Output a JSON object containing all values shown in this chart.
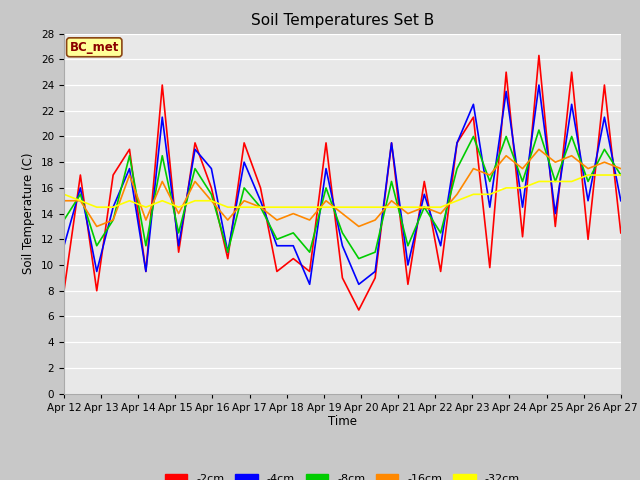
{
  "title": "Soil Temperatures Set B",
  "xlabel": "Time",
  "ylabel": "Soil Temperature (C)",
  "ylim": [
    0,
    28
  ],
  "yticks": [
    0,
    2,
    4,
    6,
    8,
    10,
    12,
    14,
    16,
    18,
    20,
    22,
    24,
    26,
    28
  ],
  "annotation": "BC_met",
  "legend_labels": [
    "-2cm",
    "-4cm",
    "-8cm",
    "-16cm",
    "-32cm"
  ],
  "legend_colors": [
    "#ff0000",
    "#0000ff",
    "#00cc00",
    "#ff8800",
    "#ffff00"
  ],
  "bg_color": "#e0e0e0",
  "plot_bg_color": "#e8e8e8",
  "xtick_labels": [
    "Apr 12",
    "Apr 13",
    "Apr 14",
    "Apr 15",
    "Apr 16",
    "Apr 17",
    "Apr 18",
    "Apr 19",
    "Apr 20",
    "Apr 21",
    "Apr 22",
    "Apr 23",
    "Apr 24",
    "Apr 25",
    "Apr 26",
    "Apr 27"
  ],
  "t_2cm": [
    8.0,
    17.0,
    8.0,
    17.0,
    19.0,
    9.5,
    24.0,
    11.0,
    19.5,
    16.0,
    10.5,
    19.5,
    16.0,
    9.5,
    10.5,
    9.5,
    19.5,
    9.0,
    6.5,
    9.0,
    19.5,
    8.5,
    16.5,
    9.5,
    19.5,
    21.5,
    9.8,
    25.0,
    12.2,
    26.3,
    13.0,
    25.0,
    12.0,
    24.0,
    12.5
  ],
  "t_4cm": [
    11.5,
    16.0,
    9.5,
    14.5,
    17.5,
    9.5,
    21.5,
    11.5,
    19.0,
    17.5,
    11.0,
    18.0,
    15.0,
    11.5,
    11.5,
    8.5,
    17.5,
    11.5,
    8.5,
    9.5,
    19.5,
    10.0,
    15.5,
    11.5,
    19.5,
    22.5,
    14.5,
    23.5,
    14.5,
    24.0,
    14.0,
    22.5,
    15.0,
    21.5,
    15.0
  ],
  "t_8cm": [
    13.5,
    15.5,
    11.5,
    13.5,
    18.5,
    11.5,
    18.5,
    12.5,
    17.5,
    15.5,
    11.0,
    16.0,
    14.5,
    12.0,
    12.5,
    11.0,
    16.0,
    12.5,
    10.5,
    11.0,
    16.5,
    11.5,
    14.5,
    12.5,
    17.5,
    20.0,
    16.5,
    20.0,
    16.5,
    20.5,
    16.5,
    20.0,
    16.5,
    19.0,
    17.0
  ],
  "t_16cm": [
    15.0,
    15.0,
    13.0,
    13.5,
    17.0,
    13.5,
    16.5,
    14.0,
    16.5,
    15.0,
    13.5,
    15.0,
    14.5,
    13.5,
    14.0,
    13.5,
    15.0,
    14.0,
    13.0,
    13.5,
    15.0,
    14.0,
    14.5,
    14.0,
    15.5,
    17.5,
    17.0,
    18.5,
    17.5,
    19.0,
    18.0,
    18.5,
    17.5,
    18.0,
    17.5
  ],
  "t_32cm": [
    15.5,
    15.0,
    14.5,
    14.5,
    15.0,
    14.5,
    15.0,
    14.5,
    15.0,
    15.0,
    14.5,
    14.5,
    14.5,
    14.5,
    14.5,
    14.5,
    14.5,
    14.5,
    14.5,
    14.5,
    14.5,
    14.5,
    14.5,
    14.5,
    15.0,
    15.5,
    15.5,
    16.0,
    16.0,
    16.5,
    16.5,
    16.5,
    17.0,
    17.0,
    17.0
  ]
}
